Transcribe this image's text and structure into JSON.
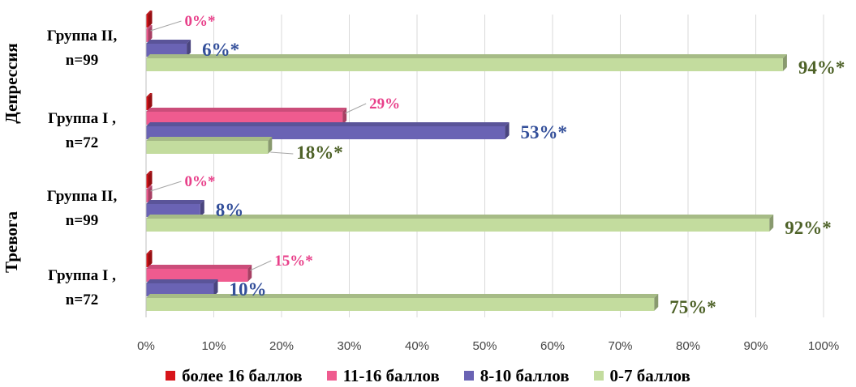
{
  "chart_data": {
    "type": "bar",
    "orientation": "horizontal",
    "xlim": [
      0,
      100
    ],
    "x_ticks": [
      "0%",
      "10%",
      "20%",
      "30%",
      "40%",
      "50%",
      "60%",
      "70%",
      "80%",
      "90%",
      "100%"
    ],
    "grid": true,
    "legend_position": "bottom",
    "groups": [
      {
        "name": "Депрессия",
        "categories": [
          {
            "label": [
              "Группа II,",
              "n=99"
            ],
            "bars": [
              {
                "series": "более 16 баллов",
                "value": 0,
                "label": ""
              },
              {
                "series": "11-16 баллов",
                "value": 0,
                "label": "0%*"
              },
              {
                "series": "8-10 баллов",
                "value": 6,
                "label": "6%*"
              },
              {
                "series": "0-7 баллов",
                "value": 94,
                "label": "94%*"
              }
            ]
          },
          {
            "label": [
              "Группа I ,",
              "n=72"
            ],
            "bars": [
              {
                "series": "более 16 баллов",
                "value": 0,
                "label": ""
              },
              {
                "series": "11-16 баллов",
                "value": 29,
                "label": "29%"
              },
              {
                "series": "8-10 баллов",
                "value": 53,
                "label": "53%*"
              },
              {
                "series": "0-7 баллов",
                "value": 18,
                "label": "18%*"
              }
            ]
          }
        ]
      },
      {
        "name": "Тревога",
        "categories": [
          {
            "label": [
              "Группа II,",
              "n=99"
            ],
            "bars": [
              {
                "series": "более 16 баллов",
                "value": 0,
                "label": ""
              },
              {
                "series": "11-16 баллов",
                "value": 0,
                "label": "0%*"
              },
              {
                "series": "8-10 баллов",
                "value": 8,
                "label": "8%"
              },
              {
                "series": "0-7 баллов",
                "value": 92,
                "label": "92%*"
              }
            ]
          },
          {
            "label": [
              "Группа I ,",
              "n=72"
            ],
            "bars": [
              {
                "series": "более 16 баллов",
                "value": 0,
                "label": ""
              },
              {
                "series": "11-16 баллов",
                "value": 15,
                "label": "15%*"
              },
              {
                "series": "8-10 баллов",
                "value": 10,
                "label": "10%"
              },
              {
                "series": "0-7 баллов",
                "value": 75,
                "label": "75%*"
              }
            ]
          }
        ]
      }
    ],
    "series": [
      {
        "name": "более 16 баллов",
        "color": "#d7141a",
        "label_color": "#c00000"
      },
      {
        "name": "11-16 баллов",
        "color": "#ef5b8f",
        "label_color": "#e8408a"
      },
      {
        "name": "8-10 баллов",
        "color": "#6a63b4",
        "label_color": "#334f9a"
      },
      {
        "name": "0-7 баллов",
        "color": "#c3dc9e",
        "label_color": "#4e6228"
      }
    ]
  }
}
